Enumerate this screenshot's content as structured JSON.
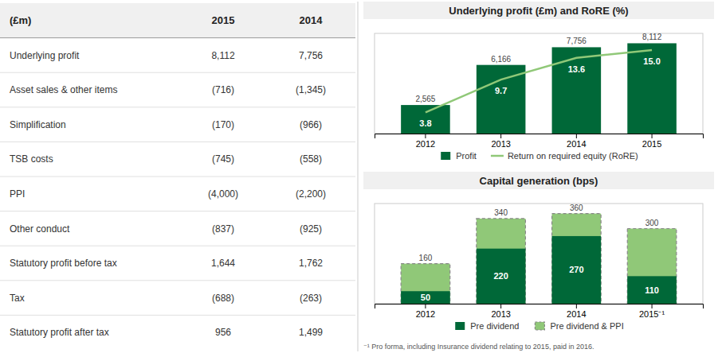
{
  "chart_data": [
    {
      "type": "table",
      "columns": [
        "(£m)",
        "2015",
        "2014"
      ],
      "rows": [
        [
          "Underlying profit",
          "8,112",
          "7,756"
        ],
        [
          "Asset sales & other items",
          "(716)",
          "(1,345)"
        ],
        [
          "Simplification",
          "(170)",
          "(966)"
        ],
        [
          "TSB costs",
          "(745)",
          "(558)"
        ],
        [
          "PPI",
          "(4,000)",
          "(2,200)"
        ],
        [
          "Other conduct",
          "(837)",
          "(925)"
        ],
        [
          "Statutory profit before tax",
          "1,644",
          "1,762"
        ],
        [
          "Tax",
          "(688)",
          "(263)"
        ],
        [
          "Statutory profit after tax",
          "956",
          "1,499"
        ]
      ]
    },
    {
      "type": "bar",
      "title": "Underlying profit (£m) and RoRE (%)",
      "categories": [
        "2012",
        "2013",
        "2014",
        "2015"
      ],
      "series": [
        {
          "name": "Profit",
          "type": "bar",
          "color": "#006838",
          "values": [
            2565,
            6166,
            7756,
            8112
          ],
          "value_labels": [
            "2,565",
            "6,166",
            "7,756",
            "8,112"
          ]
        },
        {
          "name": "Return on required equity (RoRE)",
          "type": "line",
          "color": "#90C878",
          "axis": "y2",
          "values": [
            3.8,
            9.7,
            13.6,
            15.0
          ],
          "value_labels": [
            "3.8",
            "9.7",
            "13.6",
            "15.0"
          ]
        }
      ],
      "ylim": [
        0,
        9000
      ],
      "y2lim": [
        0,
        18
      ],
      "data_labels": true,
      "tick_labels": "x",
      "legend": "bottom"
    },
    {
      "type": "bar",
      "title": "Capital generation (bps)",
      "categories": [
        "2012",
        "2013",
        "2014",
        "2015⁻¹"
      ],
      "series": [
        {
          "name": "Pre dividend",
          "color": "#006838",
          "values": [
            50,
            220,
            270,
            110
          ]
        },
        {
          "name": "Pre dividend & PPI",
          "color": "#90C878",
          "line_style": "dashed",
          "values": [
            160,
            340,
            360,
            300
          ]
        }
      ],
      "ylim": [
        0,
        400
      ],
      "data_labels": true,
      "tick_labels": "x",
      "legend": "bottom",
      "annotations": [
        "⁻¹ Pro forma, including Insurance dividend relating to 2015, paid in 2016."
      ]
    }
  ]
}
